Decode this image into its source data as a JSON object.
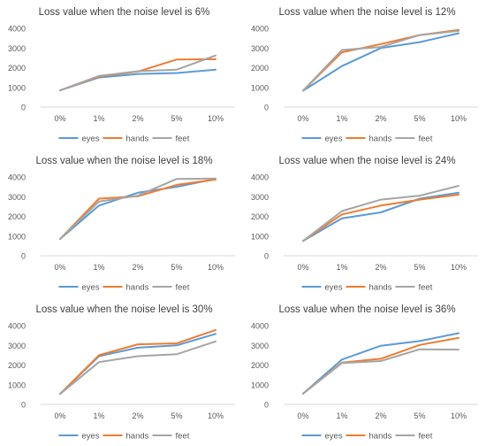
{
  "chart_data": [
    {
      "type": "line",
      "title": "Loss value when the noise level is 6%",
      "categories": [
        "0%",
        "1%",
        "2%",
        "5%",
        "10%"
      ],
      "ylim": [
        0,
        4000
      ],
      "yticks": [
        0,
        1000,
        2000,
        3000,
        4000
      ],
      "grid": false,
      "legend": "bottom",
      "series": [
        {
          "name": "eyes",
          "color": "#5b9bd5",
          "values": [
            850,
            1500,
            1680,
            1730,
            1900
          ]
        },
        {
          "name": "hands",
          "color": "#ed7d31",
          "values": [
            850,
            1550,
            1800,
            2420,
            2430
          ]
        },
        {
          "name": "feet",
          "color": "#a5a5a5",
          "values": [
            850,
            1580,
            1820,
            1900,
            2620
          ]
        }
      ]
    },
    {
      "type": "line",
      "title": "Loss value when the noise level is 12%",
      "categories": [
        "0%",
        "1%",
        "2%",
        "5%",
        "10%"
      ],
      "ylim": [
        0,
        4000
      ],
      "yticks": [
        0,
        1000,
        2000,
        3000,
        4000
      ],
      "grid": false,
      "legend": "bottom",
      "series": [
        {
          "name": "eyes",
          "color": "#5b9bd5",
          "values": [
            830,
            2080,
            3000,
            3300,
            3750
          ]
        },
        {
          "name": "hands",
          "color": "#ed7d31",
          "values": [
            830,
            2780,
            3200,
            3660,
            3920
          ]
        },
        {
          "name": "feet",
          "color": "#a5a5a5",
          "values": [
            830,
            2900,
            3050,
            3660,
            3870
          ]
        }
      ]
    },
    {
      "type": "line",
      "title": "Loss value when the noise level is 18%",
      "categories": [
        "0%",
        "1%",
        "2%",
        "5%",
        "10%"
      ],
      "ylim": [
        0,
        4000
      ],
      "yticks": [
        0,
        1000,
        2000,
        3000,
        4000
      ],
      "grid": false,
      "legend": "bottom",
      "series": [
        {
          "name": "eyes",
          "color": "#5b9bd5",
          "values": [
            850,
            2550,
            3200,
            3500,
            3900
          ]
        },
        {
          "name": "hands",
          "color": "#ed7d31",
          "values": [
            850,
            2900,
            3020,
            3600,
            3870
          ]
        },
        {
          "name": "feet",
          "color": "#a5a5a5",
          "values": [
            850,
            2750,
            3050,
            3900,
            3920
          ]
        }
      ]
    },
    {
      "type": "line",
      "title": "Loss value when the noise level is 24%",
      "categories": [
        "0%",
        "1%",
        "2%",
        "5%",
        "10%"
      ],
      "ylim": [
        0,
        4000
      ],
      "yticks": [
        0,
        1000,
        2000,
        3000,
        4000
      ],
      "grid": false,
      "legend": "bottom",
      "series": [
        {
          "name": "eyes",
          "color": "#5b9bd5",
          "values": [
            750,
            1900,
            2200,
            2900,
            3200
          ]
        },
        {
          "name": "hands",
          "color": "#ed7d31",
          "values": [
            750,
            2100,
            2550,
            2850,
            3100
          ]
        },
        {
          "name": "feet",
          "color": "#a5a5a5",
          "values": [
            750,
            2270,
            2850,
            3050,
            3550
          ]
        }
      ]
    },
    {
      "type": "line",
      "title": "Loss value when the noise level is 30%",
      "categories": [
        "0%",
        "1%",
        "2%",
        "5%",
        "10%"
      ],
      "ylim": [
        0,
        4000
      ],
      "yticks": [
        0,
        1000,
        2000,
        3000,
        4000
      ],
      "grid": false,
      "legend": "bottom",
      "series": [
        {
          "name": "eyes",
          "color": "#5b9bd5",
          "values": [
            530,
            2450,
            2880,
            3000,
            3580
          ]
        },
        {
          "name": "hands",
          "color": "#ed7d31",
          "values": [
            530,
            2500,
            3050,
            3100,
            3780
          ]
        },
        {
          "name": "feet",
          "color": "#a5a5a5",
          "values": [
            530,
            2150,
            2450,
            2550,
            3200
          ]
        }
      ]
    },
    {
      "type": "line",
      "title": "Loss value when the noise level is 36%",
      "categories": [
        "0%",
        "1%",
        "2%",
        "5%",
        "10%"
      ],
      "ylim": [
        0,
        4000
      ],
      "yticks": [
        0,
        1000,
        2000,
        3000,
        4000
      ],
      "grid": false,
      "legend": "bottom",
      "series": [
        {
          "name": "eyes",
          "color": "#5b9bd5",
          "values": [
            550,
            2280,
            2980,
            3220,
            3620
          ]
        },
        {
          "name": "hands",
          "color": "#ed7d31",
          "values": [
            550,
            2120,
            2320,
            3020,
            3380
          ]
        },
        {
          "name": "feet",
          "color": "#a5a5a5",
          "values": [
            550,
            2100,
            2200,
            2800,
            2780
          ]
        }
      ]
    }
  ]
}
